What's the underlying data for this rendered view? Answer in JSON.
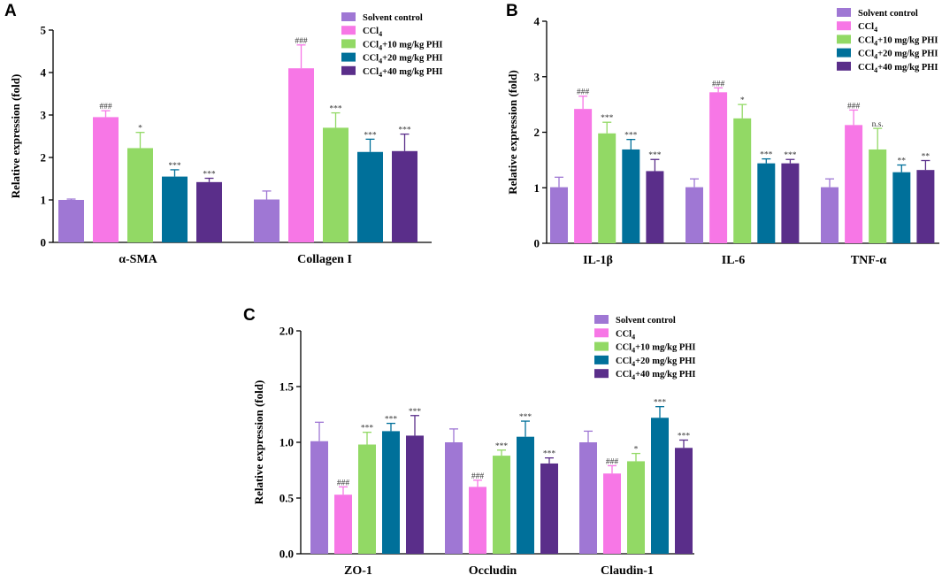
{
  "colors": {
    "solvent": "#9f77d4",
    "ccl4": "#f777e6",
    "phi10": "#92d965",
    "phi20": "#00709a",
    "phi40": "#5a2e8a"
  },
  "legend_labels": [
    [
      "Solvent control",
      "",
      ""
    ],
    [
      "CCl",
      "4",
      ""
    ],
    [
      "CCl",
      "4",
      "+10 mg/kg PHI"
    ],
    [
      "CCl",
      "4",
      "+20 mg/kg PHI"
    ],
    [
      "CCl",
      "4",
      "+40 mg/kg PHI"
    ]
  ],
  "chart_data": [
    {
      "panel": "A",
      "type": "bar",
      "ylabel": "Relative expression (fold)",
      "ylim": [
        0,
        5
      ],
      "yticks": [
        "0",
        "1",
        "2",
        "3",
        "4",
        "5"
      ],
      "categories": [
        "α-SMA",
        "Collagen I"
      ],
      "series": [
        {
          "name": "Solvent control",
          "values": [
            1.0,
            1.01
          ],
          "errors": [
            0.02,
            0.2
          ],
          "sig": [
            "",
            ""
          ]
        },
        {
          "name": "CCl4",
          "values": [
            2.95,
            4.1
          ],
          "errors": [
            0.15,
            0.55
          ],
          "sig": [
            "###",
            "###"
          ]
        },
        {
          "name": "CCl4+10 mg/kg PHI",
          "values": [
            2.22,
            2.7
          ],
          "errors": [
            0.37,
            0.35
          ],
          "sig": [
            "*",
            "***"
          ]
        },
        {
          "name": "CCl4+20 mg/kg PHI",
          "values": [
            1.55,
            2.13
          ],
          "errors": [
            0.16,
            0.3
          ],
          "sig": [
            "***",
            "***"
          ]
        },
        {
          "name": "CCl4+40 mg/kg PHI",
          "values": [
            1.42,
            2.15
          ],
          "errors": [
            0.09,
            0.4
          ],
          "sig": [
            "***",
            "***"
          ]
        }
      ]
    },
    {
      "panel": "B",
      "type": "bar",
      "ylabel": "Relative expression (fold)",
      "ylim": [
        0,
        4
      ],
      "yticks": [
        "0",
        "1",
        "2",
        "3",
        "4"
      ],
      "categories": [
        "IL-1β",
        "IL-6",
        "TNF-α"
      ],
      "series": [
        {
          "name": "Solvent control",
          "values": [
            1.01,
            1.01,
            1.01
          ],
          "errors": [
            0.18,
            0.15,
            0.15
          ],
          "sig": [
            "",
            "",
            ""
          ]
        },
        {
          "name": "CCl4",
          "values": [
            2.42,
            2.72,
            2.13
          ],
          "errors": [
            0.23,
            0.08,
            0.27
          ],
          "sig": [
            "###",
            "###",
            "###"
          ]
        },
        {
          "name": "CCl4+10 mg/kg PHI",
          "values": [
            1.98,
            2.25,
            1.69
          ],
          "errors": [
            0.2,
            0.25,
            0.38
          ],
          "sig": [
            "***",
            "*",
            "n.s."
          ]
        },
        {
          "name": "CCl4+20 mg/kg PHI",
          "values": [
            1.69,
            1.44,
            1.28
          ],
          "errors": [
            0.18,
            0.08,
            0.13
          ],
          "sig": [
            "***",
            "***",
            "**"
          ]
        },
        {
          "name": "CCl4+40 mg/kg PHI",
          "values": [
            1.3,
            1.44,
            1.32
          ],
          "errors": [
            0.21,
            0.07,
            0.17
          ],
          "sig": [
            "***",
            "***",
            "**"
          ]
        }
      ]
    },
    {
      "panel": "C",
      "type": "bar",
      "ylabel": "Relative expression (fold)",
      "ylim": [
        0,
        2
      ],
      "yticks": [
        "0.0",
        "0.5",
        "1.0",
        "1.5",
        "2.0"
      ],
      "categories": [
        "ZO-1",
        "Occludin",
        "Claudin-1"
      ],
      "series": [
        {
          "name": "Solvent control",
          "values": [
            1.01,
            1.0,
            1.0
          ],
          "errors": [
            0.17,
            0.12,
            0.1
          ],
          "sig": [
            "",
            "",
            ""
          ]
        },
        {
          "name": "CCl4",
          "values": [
            0.53,
            0.6,
            0.72
          ],
          "errors": [
            0.07,
            0.06,
            0.07
          ],
          "sig": [
            "###",
            "###",
            "###"
          ]
        },
        {
          "name": "CCl4+10 mg/kg PHI",
          "values": [
            0.98,
            0.88,
            0.83
          ],
          "errors": [
            0.11,
            0.05,
            0.07
          ],
          "sig": [
            "***",
            "***",
            "*"
          ]
        },
        {
          "name": "CCl4+20 mg/kg PHI",
          "values": [
            1.1,
            1.05,
            1.22
          ],
          "errors": [
            0.07,
            0.14,
            0.1
          ],
          "sig": [
            "***",
            "***",
            "***"
          ]
        },
        {
          "name": "CCl4+40 mg/kg PHI",
          "values": [
            1.06,
            0.81,
            0.95
          ],
          "errors": [
            0.18,
            0.05,
            0.07
          ],
          "sig": [
            "***",
            "***",
            "***"
          ]
        }
      ]
    }
  ]
}
